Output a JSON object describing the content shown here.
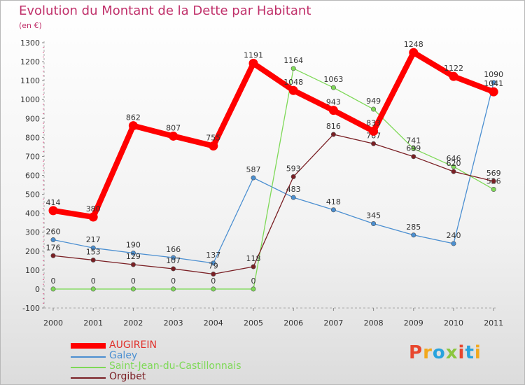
{
  "title": "Evolution du Montant de la Dette par Habitant",
  "unit": "(en €)",
  "logo_text": "Proxiti",
  "logo_colors": [
    "#e8472e",
    "#f2a81d",
    "#29a3dd",
    "#8cc63f",
    "#e8472e",
    "#29a3dd",
    "#f2a81d"
  ],
  "chart_data": {
    "type": "line",
    "title": "Evolution du Montant de la Dette par Habitant",
    "subtitle": "(en €)",
    "x": [
      "2000",
      "2001",
      "2002",
      "2003",
      "2004",
      "2005",
      "2006",
      "2007",
      "2008",
      "2009",
      "2010",
      "2011"
    ],
    "ylim": [
      -100,
      1300
    ],
    "yticks": [
      -100,
      0,
      100,
      200,
      300,
      400,
      500,
      600,
      700,
      800,
      900,
      1000,
      1100,
      1200,
      1300
    ],
    "grid": false,
    "legend_position": "bottom-left",
    "series": [
      {
        "name": "AUGIREIN",
        "color": "#ff0000",
        "values": [
          414,
          380,
          862,
          807,
          755,
          1191,
          1048,
          943,
          833,
          1248,
          1122,
          1041
        ]
      },
      {
        "name": "Galey",
        "color": "#4b8fd1",
        "values": [
          260,
          217,
          190,
          166,
          137,
          587,
          483,
          418,
          345,
          285,
          240,
          1090
        ]
      },
      {
        "name": "Saint-Jean-du-Castillonnais",
        "color": "#7ed957",
        "values": [
          0,
          0,
          0,
          0,
          0,
          0,
          1164,
          1063,
          949,
          741,
          646,
          526
        ]
      },
      {
        "name": "Orgibet",
        "color": "#7a1f24",
        "values": [
          176,
          153,
          129,
          107,
          79,
          118,
          593,
          816,
          767,
          699,
          620,
          569
        ]
      }
    ]
  }
}
